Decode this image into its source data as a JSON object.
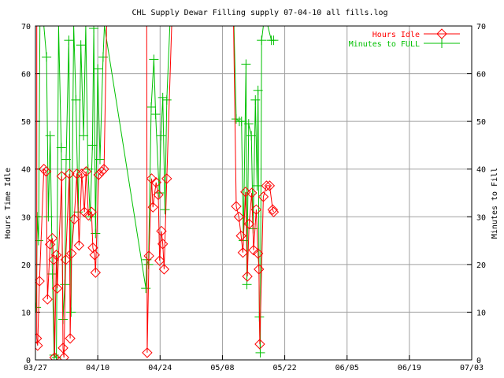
{
  "chart_data": {
    "type": "line",
    "title": "CHL Supply Dewar Filling supply 07-04-10 all fills.log",
    "ylabel": "Hours Time Idle",
    "y2label": "Minutes to Fill",
    "ylim": [
      0,
      70
    ],
    "y2lim": [
      0,
      70
    ],
    "xlim": [
      "03/27",
      "07/03"
    ],
    "x_ticks": [
      "03/27",
      "04/10",
      "04/24",
      "05/08",
      "05/22",
      "06/05",
      "06/19",
      "07/03"
    ],
    "y_ticks": [
      "0",
      "10",
      "20",
      "30",
      "40",
      "50",
      "60",
      "70"
    ],
    "grid": true,
    "legend_position": "top-right",
    "series": [
      {
        "name": "Hours Idle",
        "color": "#ff0000",
        "marker": "diamond",
        "points": [
          [
            0.3,
            70
          ],
          [
            0.3,
            4.5
          ],
          [
            0.5,
            3
          ],
          [
            0.9,
            16.5
          ],
          [
            1.9,
            40
          ],
          [
            2.4,
            39.5
          ],
          [
            2.7,
            12.7
          ],
          [
            3.3,
            24.2
          ],
          [
            3.8,
            25.5
          ],
          [
            4.1,
            21
          ],
          [
            4.3,
            0.5
          ],
          [
            4.7,
            22
          ],
          [
            4.9,
            15
          ],
          [
            5.9,
            38.5
          ],
          [
            6.2,
            2.5
          ],
          [
            6.4,
            0.5
          ],
          [
            6.8,
            21
          ],
          [
            7.6,
            39
          ],
          [
            7.8,
            4.5
          ],
          [
            8.1,
            22.3
          ],
          [
            8.7,
            29.5
          ],
          [
            9.3,
            39
          ],
          [
            9.8,
            24
          ],
          [
            10.4,
            39
          ],
          [
            11.0,
            31
          ],
          [
            11.4,
            39.5
          ],
          [
            11.9,
            30.3
          ],
          [
            12.6,
            31
          ],
          [
            12.9,
            23.5
          ],
          [
            13.3,
            22
          ],
          [
            13.5,
            18.3
          ],
          [
            14.2,
            38.8
          ],
          [
            14.9,
            39.5
          ],
          [
            15.4,
            40
          ],
          [
            16.0,
            70
          ],
          [
            25.0,
            70
          ],
          [
            25.1,
            1.5
          ],
          [
            25.5,
            21.8
          ],
          [
            26.1,
            38
          ],
          [
            26.4,
            32
          ],
          [
            27.1,
            37.2
          ],
          [
            27.6,
            34.6
          ],
          [
            27.9,
            20.8
          ],
          [
            28.3,
            27
          ],
          [
            28.6,
            24.3
          ],
          [
            28.9,
            19
          ],
          [
            29.5,
            38
          ],
          [
            30.6,
            70
          ],
          [
            44.5,
            70
          ],
          [
            45.1,
            32.2
          ],
          [
            45.7,
            30
          ],
          [
            46.2,
            26
          ],
          [
            46.6,
            22.5
          ],
          [
            47.2,
            35.2
          ],
          [
            47.6,
            17.5
          ],
          [
            48.0,
            28.5
          ],
          [
            48.6,
            35
          ],
          [
            49.0,
            23
          ],
          [
            49.6,
            31.5
          ],
          [
            50.0,
            22.3
          ],
          [
            50.2,
            19
          ],
          [
            50.4,
            3.3
          ],
          [
            51.2,
            34.2
          ],
          [
            51.9,
            36.5
          ],
          [
            52.6,
            36.5
          ],
          [
            53.3,
            31.5
          ],
          [
            53.5,
            31
          ]
        ]
      },
      {
        "name": "Minutes to FULL",
        "color": "#00c000",
        "marker": "cross",
        "points": [
          [
            0.2,
            11
          ],
          [
            0.4,
            30
          ],
          [
            0.7,
            25
          ],
          [
            1.0,
            70
          ],
          [
            1.9,
            70
          ],
          [
            2.5,
            63.5
          ],
          [
            2.9,
            30
          ],
          [
            3.3,
            47
          ],
          [
            3.8,
            18
          ],
          [
            4.2,
            1
          ],
          [
            4.7,
            0.5
          ],
          [
            5.2,
            70
          ],
          [
            5.8,
            44.5
          ],
          [
            6.2,
            8.5
          ],
          [
            6.6,
            15.8
          ],
          [
            6.9,
            42
          ],
          [
            7.5,
            67
          ],
          [
            8.0,
            10
          ],
          [
            8.6,
            70
          ],
          [
            9.1,
            54.5
          ],
          [
            9.6,
            31
          ],
          [
            10.2,
            66
          ],
          [
            10.8,
            47
          ],
          [
            11.3,
            70
          ],
          [
            11.8,
            40
          ],
          [
            12.3,
            30
          ],
          [
            12.8,
            45
          ],
          [
            13.1,
            69.5
          ],
          [
            13.5,
            26.5
          ],
          [
            14.0,
            61
          ],
          [
            14.5,
            42
          ],
          [
            15.2,
            63.5
          ],
          [
            15.5,
            70
          ],
          [
            24.8,
            15
          ],
          [
            25.0,
            21
          ],
          [
            25.4,
            20
          ],
          [
            26.0,
            53
          ],
          [
            26.6,
            63
          ],
          [
            27.0,
            51.5
          ],
          [
            27.8,
            35
          ],
          [
            28.2,
            47
          ],
          [
            28.6,
            55
          ],
          [
            29.1,
            31.5
          ],
          [
            29.5,
            54.5
          ],
          [
            30.2,
            70
          ],
          [
            44.6,
            70
          ],
          [
            45.1,
            50.5
          ],
          [
            45.8,
            50
          ],
          [
            46.3,
            50
          ],
          [
            46.7,
            25
          ],
          [
            47.3,
            62
          ],
          [
            47.5,
            15.8
          ],
          [
            47.9,
            49.5
          ],
          [
            48.5,
            47
          ],
          [
            48.9,
            27.5
          ],
          [
            49.4,
            54.5
          ],
          [
            49.8,
            36.5
          ],
          [
            50.0,
            56.5
          ],
          [
            50.3,
            9
          ],
          [
            50.5,
            1.5
          ],
          [
            50.8,
            67
          ],
          [
            51.2,
            70
          ],
          [
            52.2,
            70
          ],
          [
            53.0,
            67
          ],
          [
            53.5,
            67
          ]
        ]
      }
    ]
  }
}
